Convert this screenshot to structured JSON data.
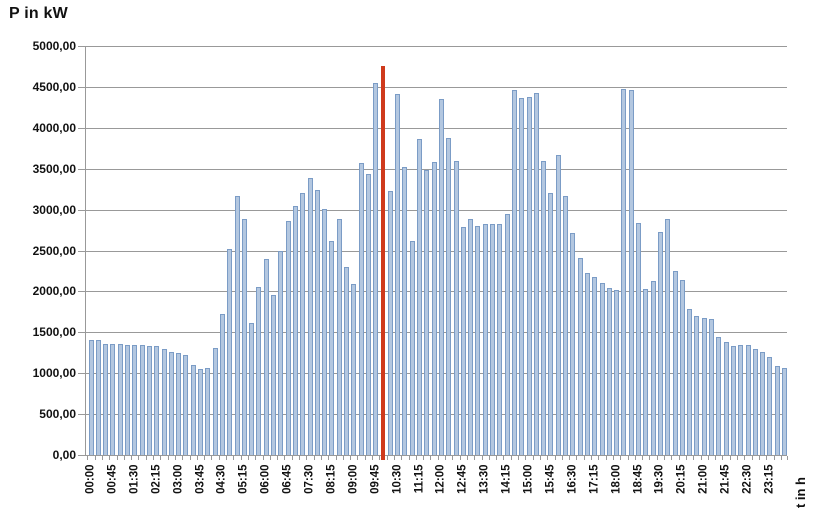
{
  "title": "P in kW",
  "x_axis_label": "t in h",
  "colors": {
    "bar_fill": "#b3c7e0",
    "bar_border": "#7b9cc6",
    "marker_line": "#cf3a1c",
    "gridline": "#999999",
    "text": "#111111"
  },
  "y_axis": {
    "min": 0,
    "max": 5000,
    "step": 500,
    "tick_labels": [
      "0,00",
      "500,00",
      "1000,00",
      "1500,00",
      "2000,00",
      "2500,00",
      "3000,00",
      "3500,00",
      "4000,00",
      "4500,00",
      "5000,00"
    ]
  },
  "x_axis": {
    "label_every": 3,
    "shown_labels": [
      "00:00",
      "00:45",
      "01:30",
      "02:15",
      "03:00",
      "03:45",
      "04:30",
      "05:15",
      "06:00",
      "06:45",
      "07:30",
      "08:15",
      "09:00",
      "09:45",
      "10:30",
      "11:15",
      "12:00",
      "12:45",
      "13:30",
      "14:15",
      "15:00",
      "15:45",
      "16:30",
      "17:15",
      "18:00",
      "18:45",
      "19:30",
      "20:15",
      "21:00",
      "21:45",
      "22:30",
      "23:15"
    ]
  },
  "chart_data": {
    "type": "bar",
    "title": "P in kW",
    "xlabel": "t in h",
    "ylabel": "P in kW",
    "ylim": [
      0,
      5000
    ],
    "grid": true,
    "x": [
      "00:00",
      "00:15",
      "00:30",
      "00:45",
      "01:00",
      "01:15",
      "01:30",
      "01:45",
      "02:00",
      "02:15",
      "02:30",
      "02:45",
      "03:00",
      "03:15",
      "03:30",
      "03:45",
      "04:00",
      "04:15",
      "04:30",
      "04:45",
      "05:00",
      "05:15",
      "05:30",
      "05:45",
      "06:00",
      "06:15",
      "06:30",
      "06:45",
      "07:00",
      "07:15",
      "07:30",
      "07:45",
      "08:00",
      "08:15",
      "08:30",
      "08:45",
      "09:00",
      "09:15",
      "09:30",
      "09:45",
      "10:00",
      "10:15",
      "10:30",
      "10:45",
      "11:00",
      "11:15",
      "11:30",
      "11:45",
      "12:00",
      "12:15",
      "12:30",
      "12:45",
      "13:00",
      "13:15",
      "13:30",
      "13:45",
      "14:00",
      "14:15",
      "14:30",
      "14:45",
      "15:00",
      "15:15",
      "15:30",
      "15:45",
      "16:00",
      "16:15",
      "16:30",
      "16:45",
      "17:00",
      "17:15",
      "17:30",
      "17:45",
      "18:00",
      "18:15",
      "18:30",
      "18:45",
      "19:00",
      "19:15",
      "19:30",
      "19:45",
      "20:00",
      "20:15",
      "20:30",
      "20:45",
      "21:00",
      "21:15",
      "21:30",
      "21:45",
      "22:00",
      "22:15",
      "22:30",
      "22:45",
      "23:00",
      "23:15",
      "23:30",
      "23:45"
    ],
    "values": [
      1400,
      1410,
      1355,
      1360,
      1355,
      1350,
      1350,
      1340,
      1335,
      1330,
      1300,
      1260,
      1250,
      1220,
      1100,
      1050,
      1060,
      1310,
      1720,
      2520,
      3170,
      2880,
      1610,
      2050,
      2400,
      1950,
      2500,
      2860,
      3050,
      3200,
      3385,
      3240,
      3010,
      2620,
      2880,
      2300,
      2090,
      3570,
      3440,
      4550,
      null,
      3230,
      4410,
      3520,
      2615,
      3860,
      3490,
      3580,
      4350,
      3880,
      3600,
      2790,
      2890,
      2800,
      2830,
      2820,
      2830,
      2950,
      4460,
      4370,
      4380,
      4420,
      3590,
      3200,
      3670,
      3170,
      2710,
      2410,
      2220,
      2180,
      2100,
      2040,
      2020,
      4480,
      4460,
      2840,
      2030,
      2130,
      2730,
      2880,
      2250,
      2140,
      1780,
      1700,
      1680,
      1660,
      1440,
      1380,
      1330,
      1350,
      1340,
      1290,
      1260,
      1200,
      1090,
      1065
    ],
    "marker_line": {
      "x": "10:00",
      "slot_index": 40,
      "value": 4750,
      "color": "#cf3a1c"
    }
  }
}
